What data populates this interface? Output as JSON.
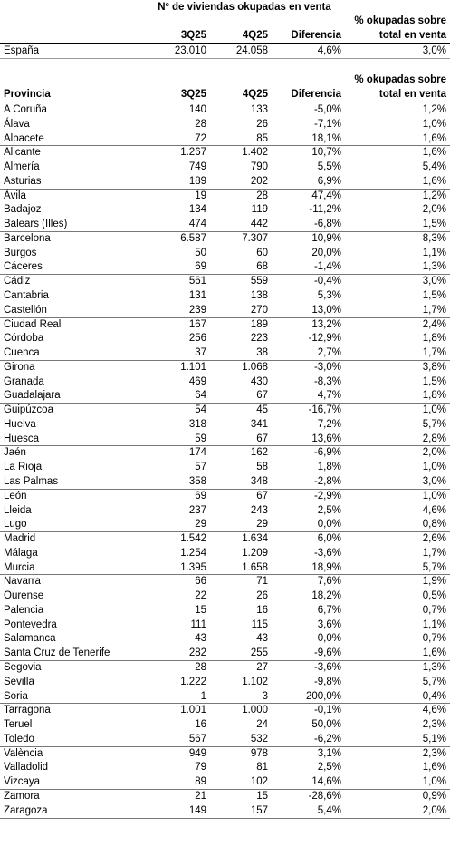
{
  "title": "Nº de viviendas okupadas en venta",
  "summary": {
    "header": [
      "3Q25",
      "4Q25",
      "Diferencia",
      [
        "% okupadas sobre",
        "total en venta"
      ]
    ],
    "row": [
      "España",
      "23.010",
      "24.058",
      "4,6%",
      "3,0%"
    ]
  },
  "table": {
    "header": [
      "Provincia",
      "3Q25",
      "4Q25",
      "Diferencia",
      [
        "% okupadas sobre",
        "total en venta"
      ]
    ],
    "rows": [
      [
        "A Coruña",
        "140",
        "133",
        "-5,0%",
        "1,2%"
      ],
      [
        "Álava",
        "28",
        "26",
        "-7,1%",
        "1,0%"
      ],
      [
        "Albacete",
        "72",
        "85",
        "18,1%",
        "1,6%"
      ],
      [
        "Alicante",
        "1.267",
        "1.402",
        "10,7%",
        "1,6%"
      ],
      [
        "Almería",
        "749",
        "790",
        "5,5%",
        "5,4%"
      ],
      [
        "Asturias",
        "189",
        "202",
        "6,9%",
        "1,6%"
      ],
      [
        "Ávila",
        "19",
        "28",
        "47,4%",
        "1,2%"
      ],
      [
        "Badajoz",
        "134",
        "119",
        "-11,2%",
        "2,0%"
      ],
      [
        "Balears (Illes)",
        "474",
        "442",
        "-6,8%",
        "1,5%"
      ],
      [
        "Barcelona",
        "6.587",
        "7.307",
        "10,9%",
        "8,3%"
      ],
      [
        "Burgos",
        "50",
        "60",
        "20,0%",
        "1,1%"
      ],
      [
        "Cáceres",
        "69",
        "68",
        "-1,4%",
        "1,3%"
      ],
      [
        "Cádiz",
        "561",
        "559",
        "-0,4%",
        "3,0%"
      ],
      [
        "Cantabria",
        "131",
        "138",
        "5,3%",
        "1,5%"
      ],
      [
        "Castellón",
        "239",
        "270",
        "13,0%",
        "1,7%"
      ],
      [
        "Ciudad Real",
        "167",
        "189",
        "13,2%",
        "2,4%"
      ],
      [
        "Córdoba",
        "256",
        "223",
        "-12,9%",
        "1,8%"
      ],
      [
        "Cuenca",
        "37",
        "38",
        "2,7%",
        "1,7%"
      ],
      [
        "Girona",
        "1.101",
        "1.068",
        "-3,0%",
        "3,8%"
      ],
      [
        "Granada",
        "469",
        "430",
        "-8,3%",
        "1,5%"
      ],
      [
        "Guadalajara",
        "64",
        "67",
        "4,7%",
        "1,8%"
      ],
      [
        "Guipúzcoa",
        "54",
        "45",
        "-16,7%",
        "1,0%"
      ],
      [
        "Huelva",
        "318",
        "341",
        "7,2%",
        "5,7%"
      ],
      [
        "Huesca",
        "59",
        "67",
        "13,6%",
        "2,8%"
      ],
      [
        "Jaén",
        "174",
        "162",
        "-6,9%",
        "2,0%"
      ],
      [
        "La Rioja",
        "57",
        "58",
        "1,8%",
        "1,0%"
      ],
      [
        "Las Palmas",
        "358",
        "348",
        "-2,8%",
        "3,0%"
      ],
      [
        "León",
        "69",
        "67",
        "-2,9%",
        "1,0%"
      ],
      [
        "Lleida",
        "237",
        "243",
        "2,5%",
        "4,6%"
      ],
      [
        "Lugo",
        "29",
        "29",
        "0,0%",
        "0,8%"
      ],
      [
        "Madrid",
        "1.542",
        "1.634",
        "6,0%",
        "2,6%"
      ],
      [
        "Málaga",
        "1.254",
        "1.209",
        "-3,6%",
        "1,7%"
      ],
      [
        "Murcia",
        "1.395",
        "1.658",
        "18,9%",
        "5,7%"
      ],
      [
        "Navarra",
        "66",
        "71",
        "7,6%",
        "1,9%"
      ],
      [
        "Ourense",
        "22",
        "26",
        "18,2%",
        "0,5%"
      ],
      [
        "Palencia",
        "15",
        "16",
        "6,7%",
        "0,7%"
      ],
      [
        "Pontevedra",
        "111",
        "115",
        "3,6%",
        "1,1%"
      ],
      [
        "Salamanca",
        "43",
        "43",
        "0,0%",
        "0,7%"
      ],
      [
        "Santa Cruz de Tenerife",
        "282",
        "255",
        "-9,6%",
        "1,6%"
      ],
      [
        "Segovia",
        "28",
        "27",
        "-3,6%",
        "1,3%"
      ],
      [
        "Sevilla",
        "1.222",
        "1.102",
        "-9,8%",
        "5,7%"
      ],
      [
        "Soria",
        "1",
        "3",
        "200,0%",
        "0,4%"
      ],
      [
        "Tarragona",
        "1.001",
        "1.000",
        "-0,1%",
        "4,6%"
      ],
      [
        "Teruel",
        "16",
        "24",
        "50,0%",
        "2,3%"
      ],
      [
        "Toledo",
        "567",
        "532",
        "-6,2%",
        "5,1%"
      ],
      [
        "València",
        "949",
        "978",
        "3,1%",
        "2,3%"
      ],
      [
        "Valladolid",
        "79",
        "81",
        "2,5%",
        "1,6%"
      ],
      [
        "Vizcaya",
        "89",
        "102",
        "14,6%",
        "1,0%"
      ],
      [
        "Zamora",
        "21",
        "15",
        "-28,6%",
        "0,9%"
      ],
      [
        "Zaragoza",
        "149",
        "157",
        "5,4%",
        "2,0%"
      ]
    ]
  }
}
